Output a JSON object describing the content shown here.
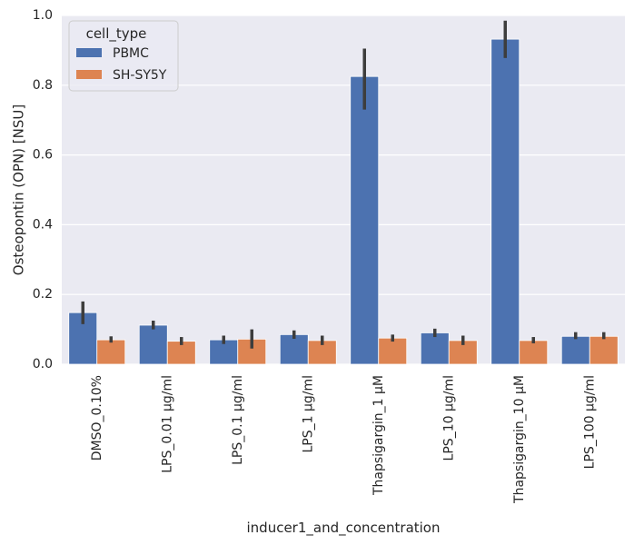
{
  "chart_data": {
    "type": "bar",
    "xlabel": "inducer1_and_concentration",
    "ylabel": "Osteopontin (OPN) [NSU]",
    "ylim": [
      0,
      1.0
    ],
    "yticks": [
      "0.0",
      "0.2",
      "0.4",
      "0.6",
      "0.8",
      "1.0"
    ],
    "grid": true,
    "legend": {
      "title": "cell_type",
      "placement": "top-left"
    },
    "categories": [
      "DMSO_0.10%",
      "LPS_0.01 µg/ml",
      "LPS_0.1 µg/ml",
      "LPS_1 µg/ml",
      "Thapsigargin_1 µM",
      "LPS_10 µg/ml",
      "Thapsigargin_10 µM",
      "LPS_100 µg/ml"
    ],
    "series": [
      {
        "name": "PBMC",
        "color": "#4c72b0",
        "values": [
          0.148,
          0.112,
          0.07,
          0.085,
          0.825,
          0.09,
          0.932,
          0.08
        ],
        "error_low": [
          0.115,
          0.1,
          0.058,
          0.073,
          0.73,
          0.078,
          0.878,
          0.072
        ],
        "error_high": [
          0.18,
          0.125,
          0.082,
          0.097,
          0.905,
          0.102,
          0.985,
          0.092
        ]
      },
      {
        "name": "SH-SY5Y",
        "color": "#dd8452",
        "values": [
          0.07,
          0.066,
          0.072,
          0.068,
          0.075,
          0.068,
          0.068,
          0.08
        ],
        "error_low": [
          0.062,
          0.055,
          0.045,
          0.055,
          0.065,
          0.055,
          0.06,
          0.072
        ],
        "error_high": [
          0.08,
          0.078,
          0.1,
          0.082,
          0.085,
          0.082,
          0.078,
          0.092
        ]
      }
    ]
  }
}
